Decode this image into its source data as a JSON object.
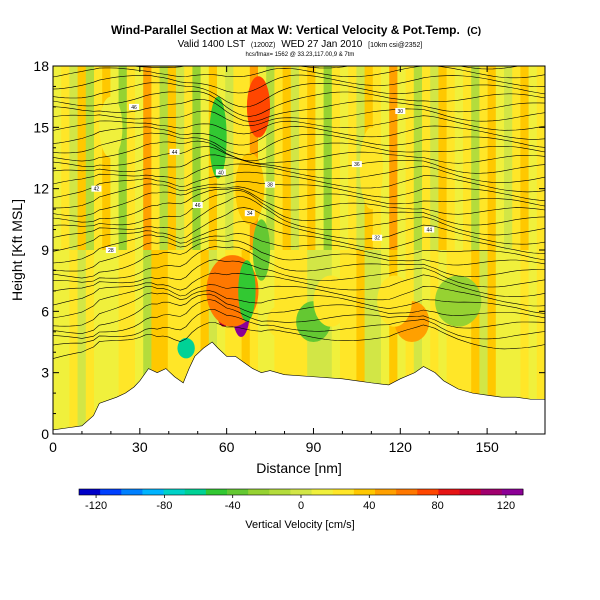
{
  "chart_data": {
    "type": "heatmap",
    "title": "Wind-Parallel Section at Max W: Vertical Velocity & Pot.Temp.",
    "title_mark": "(C)",
    "subtitle_left": "Valid 1400 LST",
    "subtitle_utc": "(1200Z)",
    "subtitle_right": "WED 27 Jan 2010",
    "subtitle_grid": "[10km csi@2352]",
    "small_text": "hcs/fmax= 1562 @ 33.23,117.00,9 & 7tm",
    "xlabel": "Distance [nm]",
    "ylabel": "Height [Kft MSL]",
    "xlim": [
      0,
      170
    ],
    "ylim": [
      0,
      18
    ],
    "xticks": [
      "0",
      "30",
      "60",
      "90",
      "120",
      "150"
    ],
    "yticks": [
      "0",
      "3",
      "6",
      "9",
      "12",
      "15",
      "18"
    ],
    "colorbar": {
      "label": "Vertical Velocity [cm/s]",
      "ticks": [
        "-120",
        "-80",
        "-40",
        "0",
        "40",
        "80",
        "120"
      ],
      "range": [
        -130,
        130
      ],
      "colors": [
        "#0000c8",
        "#0040ff",
        "#0080ff",
        "#00b4ff",
        "#00d2c8",
        "#00d296",
        "#32c832",
        "#64c832",
        "#96d232",
        "#b4dc3c",
        "#d2e646",
        "#f0f03c",
        "#ffe628",
        "#ffc800",
        "#ffa000",
        "#ff7800",
        "#ff4600",
        "#e61414",
        "#c80032",
        "#a0006e",
        "#8c0096"
      ]
    },
    "terrain_profile": {
      "x_nm": [
        0,
        5,
        10,
        14,
        16,
        22,
        25,
        28,
        30,
        33,
        36,
        39,
        42,
        45,
        47,
        49,
        52,
        55,
        57,
        60,
        63,
        66,
        69,
        72,
        75,
        80,
        90,
        100,
        110,
        116,
        120,
        125,
        128,
        132,
        135,
        140,
        145,
        150,
        155,
        160,
        165,
        170
      ],
      "height_kft": [
        0.2,
        0.3,
        0.4,
        0.9,
        1.5,
        1.8,
        2.0,
        2.3,
        2.6,
        3.2,
        3.0,
        3.2,
        2.8,
        2.5,
        3.2,
        3.8,
        4.2,
        4.5,
        4.2,
        3.8,
        3.8,
        3.5,
        3.2,
        3.0,
        3.1,
        2.9,
        2.8,
        2.7,
        2.5,
        2.4,
        2.7,
        3.0,
        3.3,
        3.0,
        2.6,
        2.2,
        2.0,
        1.9,
        1.8,
        1.8,
        1.7,
        1.7
      ]
    },
    "velocity_features": [
      {
        "x_nm": 59,
        "z_kft": 6.5,
        "width_nm": 3,
        "height_kft": 2.5,
        "value": 100
      },
      {
        "x_nm": 65,
        "z_kft": 6.0,
        "width_nm": 3,
        "height_kft": 2.5,
        "value": 120
      },
      {
        "x_nm": 62,
        "z_kft": 7.0,
        "width_nm": 9,
        "height_kft": 3.5,
        "value": 65
      },
      {
        "x_nm": 71,
        "z_kft": 16.0,
        "width_nm": 4,
        "height_kft": 3.0,
        "value": 70
      },
      {
        "x_nm": 68,
        "z_kft": 12.0,
        "width_nm": 5,
        "height_kft": 3.5,
        "value": 40
      },
      {
        "x_nm": 57,
        "z_kft": 14.5,
        "width_nm": 3,
        "height_kft": 4.0,
        "value": -55
      },
      {
        "x_nm": 67,
        "z_kft": 7.0,
        "width_nm": 3,
        "height_kft": 3.0,
        "value": -45
      },
      {
        "x_nm": 72,
        "z_kft": 9.0,
        "width_nm": 3,
        "height_kft": 3.0,
        "value": -35
      },
      {
        "x_nm": 90,
        "z_kft": 5.5,
        "width_nm": 6,
        "height_kft": 2.0,
        "value": -40
      },
      {
        "x_nm": 96,
        "z_kft": 6.5,
        "width_nm": 6,
        "height_kft": 2.5,
        "value": 25
      },
      {
        "x_nm": 124,
        "z_kft": 5.5,
        "width_nm": 6,
        "height_kft": 2.0,
        "value": 45
      },
      {
        "x_nm": 118,
        "z_kft": 6.5,
        "width_nm": 6,
        "height_kft": 2.5,
        "value": 20
      },
      {
        "x_nm": 140,
        "z_kft": 6.5,
        "width_nm": 8,
        "height_kft": 2.5,
        "value": -20
      },
      {
        "x_nm": 46,
        "z_kft": 4.2,
        "width_nm": 3,
        "height_kft": 1.0,
        "value": -60
      },
      {
        "x_nm": 78,
        "z_kft": 5.5,
        "width_nm": 4,
        "height_kft": 1.5,
        "value": 20
      },
      {
        "x_nm": 20,
        "z_kft": 15.0,
        "width_nm": 4,
        "height_kft": 3.0,
        "value": 15
      },
      {
        "x_nm": 110,
        "z_kft": 13.0,
        "width_nm": 4,
        "height_kft": 4.0,
        "value": 20
      }
    ],
    "isentrope_labels": [
      "46",
      "44",
      "42",
      "40",
      "38",
      "36",
      "34",
      "32",
      "30",
      "28"
    ]
  },
  "icons": {
    "colorbar_end": "triangle-icon"
  }
}
